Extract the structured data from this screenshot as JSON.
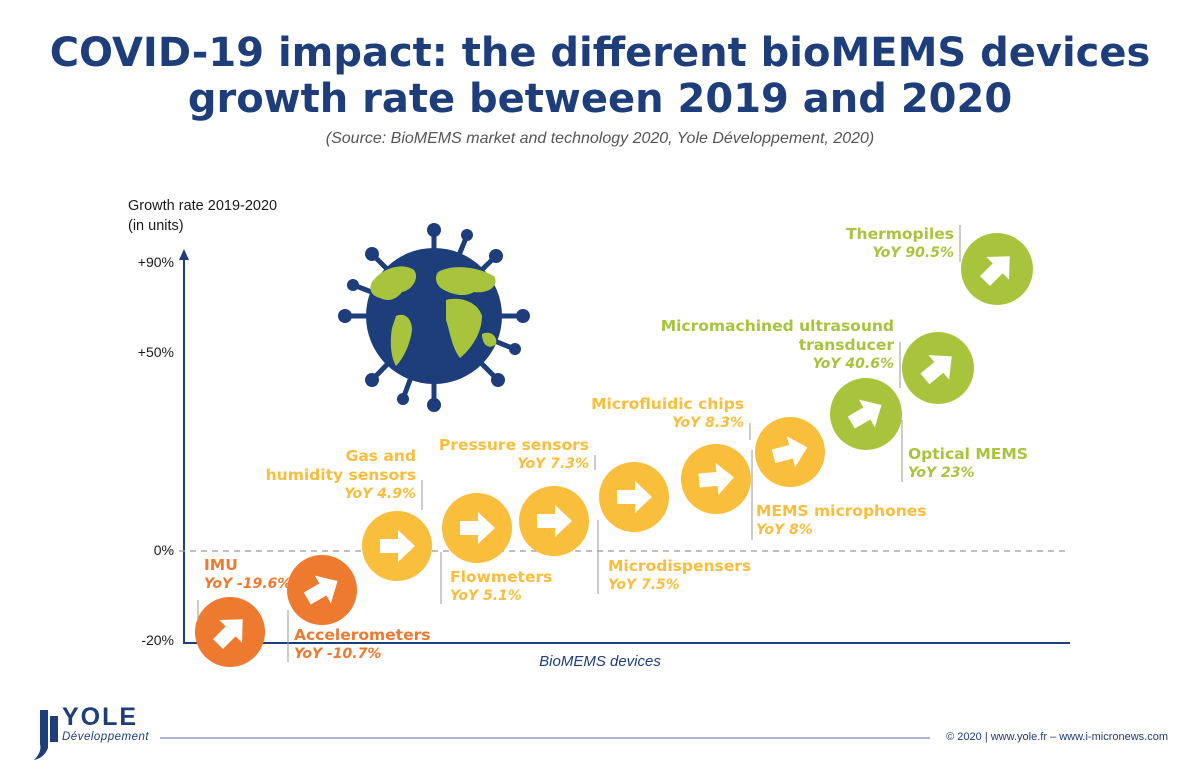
{
  "title_line1": "COVID-19 impact: the different bioMEMS devices",
  "title_line2": "growth rate between 2019 and 2020",
  "source": "(Source: BioMEMS market and technology 2020, Yole Développement, 2020)",
  "footer": "© 2020 | www.yole.fr – www.i-micronews.com",
  "logo": {
    "name": "YOLE",
    "sub": "Développement"
  },
  "colors": {
    "navy": "#1d3e7a",
    "orange": "#ee7a30",
    "yellow": "#f8be3c",
    "green": "#a8c43c"
  },
  "chart_data": {
    "type": "scatter",
    "ylabel_line1": "Growth rate 2019-2020",
    "ylabel_line2": "(in units)",
    "xlabel": "BioMEMS devices",
    "ytick_labels": [
      "+90%",
      "+50%",
      "0%",
      "-20%"
    ],
    "ylim": [
      -20,
      90
    ],
    "categories": [
      "IMU",
      "Accelerometers",
      "Gas and humidity sensors",
      "Flowmeters",
      "Pressure sensors",
      "Microdispensers",
      "Microfluidic chips",
      "MEMS microphones",
      "Optical MEMS",
      "Micromachined ultrasound transducer",
      "Thermopiles"
    ],
    "points": [
      {
        "name_lines": [
          "IMU"
        ],
        "yoy": "YoY -19.6%",
        "value": -19.6,
        "color": "orange"
      },
      {
        "name_lines": [
          "Accelerometers"
        ],
        "yoy": "YoY -10.7%",
        "value": -10.7,
        "color": "orange"
      },
      {
        "name_lines": [
          "Gas and",
          "humidity sensors"
        ],
        "yoy": "YoY 4.9%",
        "value": 4.9,
        "color": "yellow"
      },
      {
        "name_lines": [
          "Flowmeters"
        ],
        "yoy": "YoY 5.1%",
        "value": 5.1,
        "color": "yellow"
      },
      {
        "name_lines": [
          "Pressure sensors"
        ],
        "yoy": "YoY 7.3%",
        "value": 7.3,
        "color": "yellow"
      },
      {
        "name_lines": [
          "Microdispensers"
        ],
        "yoy": "YoY 7.5%",
        "value": 7.5,
        "color": "yellow"
      },
      {
        "name_lines": [
          "Microfluidic chips"
        ],
        "yoy": "YoY 8.3%",
        "value": 8.3,
        "color": "yellow"
      },
      {
        "name_lines": [
          "MEMS microphones"
        ],
        "yoy": "YoY 8%",
        "value": 8,
        "color": "yellow"
      },
      {
        "name_lines": [
          "Optical MEMS"
        ],
        "yoy": "YoY 23%",
        "value": 23,
        "color": "green"
      },
      {
        "name_lines": [
          "Micromachined ultrasound",
          "transducer"
        ],
        "yoy": "YoY 40.6%",
        "value": 40.6,
        "color": "green"
      },
      {
        "name_lines": [
          "Thermopiles"
        ],
        "yoy": "YoY 90.5%",
        "value": 90.5,
        "color": "green"
      }
    ]
  }
}
